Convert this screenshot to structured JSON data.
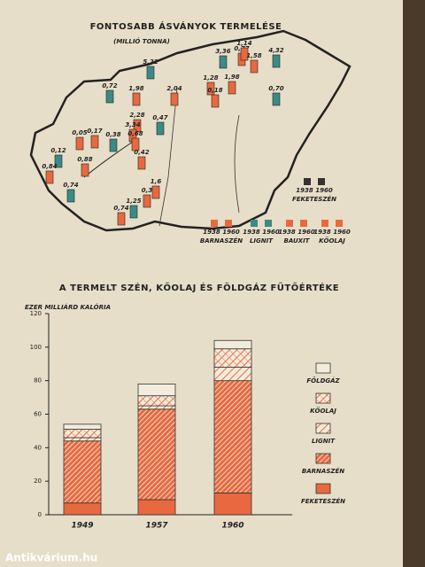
{
  "map": {
    "title": "FONTOSABB ÁSVÁNYOK TERMELÉSE",
    "subtitle": "(MILLIÓ TONNA)",
    "labels": [
      "3,36",
      "0,77",
      "1,14",
      "4,32",
      "1,58",
      "1,28",
      "5,22",
      "1,98",
      "2,04",
      "0,72",
      "0,18",
      "1,98",
      "0,70",
      "2,28",
      "3,34",
      "0,47",
      "0,05",
      "0,17",
      "0,38",
      "0,68",
      "0,42",
      "0,12",
      "0,84",
      "0,88",
      "0,74",
      "1,6",
      "0,3",
      "1,25",
      "0,74"
    ],
    "legend": [
      {
        "years": "1938 1960",
        "name": "FEKETESZÉN"
      },
      {
        "years": "1938 1960",
        "name": "BARNASZÉN"
      },
      {
        "years": "1938 1960",
        "name": "LIGNIT"
      },
      {
        "years": "1938 1960",
        "name": "BAUXIT"
      },
      {
        "years": "1938 1960",
        "name": "KŐOLAJ"
      }
    ]
  },
  "chart_data": {
    "type": "stacked_bar",
    "title": "A TERMELT SZÉN, KŐOLAJ ÉS FÖLDGÁZ FŰTŐÉRTÉKE",
    "y_label": "EZER MILLIÁRD KALÓRIA",
    "categories": [
      "1949",
      "1957",
      "1960"
    ],
    "series": [
      {
        "name": "FEKETESZÉN",
        "color": "#e8693f",
        "pattern": "solid",
        "values": [
          7,
          9,
          13
        ]
      },
      {
        "name": "BARNASZÉN",
        "color": "#e8693f",
        "pattern": "dense",
        "values": [
          37,
          54,
          67
        ]
      },
      {
        "name": "LIGNIT",
        "color": "#e8693f",
        "pattern": "sparse",
        "values": [
          2,
          2,
          8
        ]
      },
      {
        "name": "KŐOLAJ",
        "color": "#e8693f",
        "pattern": "cross",
        "values": [
          5,
          6,
          11
        ]
      },
      {
        "name": "FÖLDGÁZ",
        "color": "#e8693f",
        "pattern": "blank",
        "values": [
          3,
          7,
          5
        ]
      }
    ],
    "ylim": [
      0,
      120
    ],
    "yticks": [
      0,
      20,
      40,
      60,
      80,
      100,
      120
    ],
    "grid": false
  },
  "watermark": "Antikvárium.hu"
}
